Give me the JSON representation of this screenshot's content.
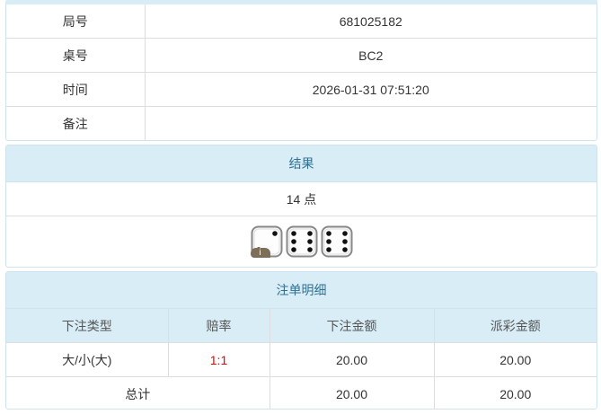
{
  "info": {
    "rows": [
      {
        "label": "局号",
        "value": "681025182"
      },
      {
        "label": "桌号",
        "value": "BC2"
      },
      {
        "label": "时间",
        "value": "2026-01-31 07:51:20"
      },
      {
        "label": "备注",
        "value": ""
      }
    ]
  },
  "result": {
    "title": "结果",
    "points": "14 点",
    "dice": [
      2,
      6,
      6
    ],
    "badge": "i"
  },
  "bets": {
    "title": "注单明细",
    "columns": [
      "下注类型",
      "赔率",
      "下注金额",
      "派彩金额"
    ],
    "rows": [
      {
        "type": "大/小(大)",
        "odds": "1:1",
        "amount": "20.00",
        "payout": "20.00"
      }
    ],
    "total": {
      "label": "总计",
      "amount": "20.00",
      "payout": "20.00"
    },
    "odds_color": "#e00000"
  }
}
